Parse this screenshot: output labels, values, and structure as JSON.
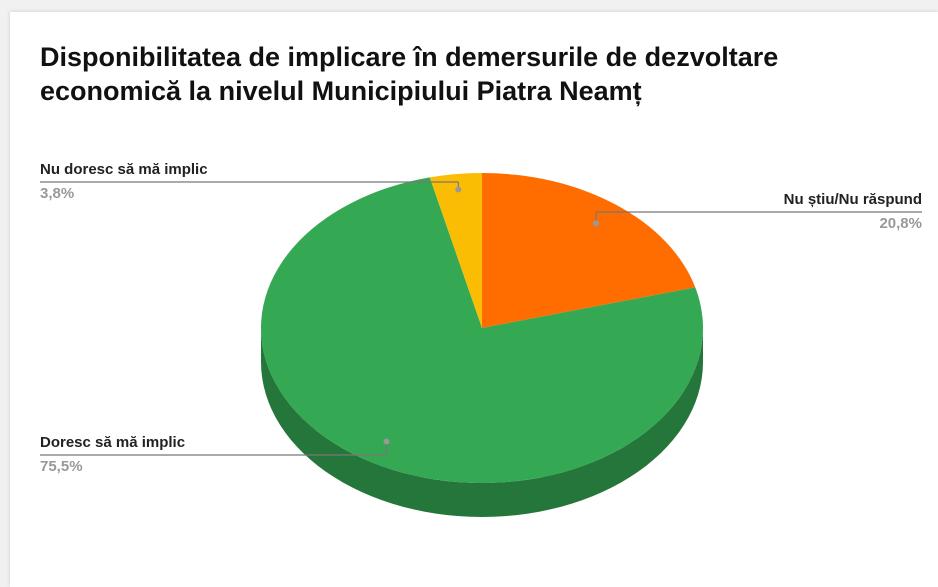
{
  "chart_data": {
    "type": "pie",
    "title": "Disponibilitatea de implicare în demersurile de dezvoltare economică la nivelul Municipiului Piatra Neamț",
    "categories": [
      "Nu știu/Nu răspund",
      "Doresc să mă implic",
      "Nu doresc să mă implic"
    ],
    "values": [
      20.8,
      75.5,
      3.8
    ],
    "value_labels": [
      "20,8%",
      "75,5%",
      "3,8%"
    ],
    "colors": [
      "#ff6d01",
      "#34a853",
      "#fbbc04"
    ],
    "three_d": true
  }
}
